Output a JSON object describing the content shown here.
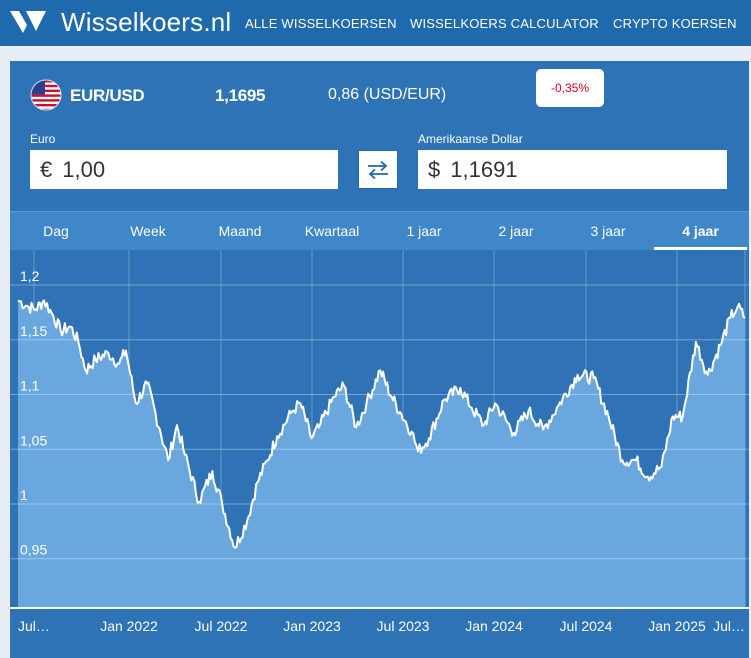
{
  "header": {
    "brand": "Wisselkoers.nl",
    "nav": [
      "ALLE WISSELKOERSEN",
      "WISSELKOERS CALCULATOR",
      "CRYPTO KOERSEN"
    ]
  },
  "ticker": {
    "pair": "EUR/USD",
    "rate": "1,1695",
    "inverse": "0,86 (USD/EUR)",
    "change": "-0,35%"
  },
  "converter": {
    "from_label": "Euro",
    "from_symbol": "€",
    "from_value": "1,00",
    "to_label": "Amerikaanse Dollar",
    "to_symbol": "$",
    "to_value": "1,1691"
  },
  "tabs": {
    "items": [
      "Dag",
      "Week",
      "Maand",
      "Kwartaal",
      "1 jaar",
      "2 jaar",
      "3 jaar",
      "4 jaar"
    ],
    "active": "4 jaar"
  },
  "colors": {
    "header": "#1f6aac",
    "card": "#2e73b6",
    "area_fill": "#6aa7df",
    "negative": "#d0021b"
  },
  "chart_data": {
    "type": "area",
    "x_tick_labels": [
      "Jul…",
      "Jan 2022",
      "Jul 2022",
      "Jan 2023",
      "Jul 2023",
      "Jan 2024",
      "Jul 2024",
      "Jan 2025",
      "Jul…"
    ],
    "y_tick_labels": [
      "1,2",
      "1,15",
      "1,1",
      "1,05",
      "1",
      "0,95"
    ],
    "y_ticks": [
      1.2,
      1.15,
      1.1,
      1.05,
      1.0,
      0.95
    ],
    "ylim": [
      0.905,
      1.232
    ],
    "x_range": [
      "2021-07-10",
      "2025-07-30"
    ],
    "grid": true,
    "series": [
      {
        "points": [
          [
            "2021-07-10",
            1.186
          ],
          [
            "2021-08-01",
            1.18
          ],
          [
            "2021-08-15",
            1.178
          ],
          [
            "2021-09-01",
            1.186
          ],
          [
            "2021-09-20",
            1.172
          ],
          [
            "2021-10-05",
            1.158
          ],
          [
            "2021-10-25",
            1.162
          ],
          [
            "2021-11-10",
            1.148
          ],
          [
            "2021-11-25",
            1.122
          ],
          [
            "2021-12-15",
            1.132
          ],
          [
            "2022-01-10",
            1.138
          ],
          [
            "2022-02-01",
            1.128
          ],
          [
            "2022-02-15",
            1.14
          ],
          [
            "2022-03-07",
            1.092
          ],
          [
            "2022-03-30",
            1.11
          ],
          [
            "2022-04-25",
            1.068
          ],
          [
            "2022-05-12",
            1.04
          ],
          [
            "2022-05-30",
            1.072
          ],
          [
            "2022-06-15",
            1.045
          ],
          [
            "2022-07-14",
            1.002
          ],
          [
            "2022-08-10",
            1.03
          ],
          [
            "2022-08-30",
            1.0
          ],
          [
            "2022-09-25",
            0.96
          ],
          [
            "2022-10-20",
            0.985
          ],
          [
            "2022-11-10",
            1.02
          ],
          [
            "2022-11-30",
            1.04
          ],
          [
            "2022-12-20",
            1.062
          ],
          [
            "2023-01-20",
            1.085
          ],
          [
            "2023-02-05",
            1.092
          ],
          [
            "2023-02-28",
            1.06
          ],
          [
            "2023-03-15",
            1.07
          ],
          [
            "2023-04-15",
            1.098
          ],
          [
            "2023-05-05",
            1.108
          ],
          [
            "2023-05-30",
            1.07
          ],
          [
            "2023-06-20",
            1.092
          ],
          [
            "2023-07-18",
            1.122
          ],
          [
            "2023-08-10",
            1.098
          ],
          [
            "2023-08-30",
            1.082
          ],
          [
            "2023-09-20",
            1.066
          ],
          [
            "2023-10-03",
            1.048
          ],
          [
            "2023-10-25",
            1.06
          ],
          [
            "2023-11-25",
            1.095
          ],
          [
            "2023-12-28",
            1.106
          ],
          [
            "2024-01-20",
            1.088
          ],
          [
            "2024-02-14",
            1.072
          ],
          [
            "2024-03-08",
            1.092
          ],
          [
            "2024-04-15",
            1.065
          ],
          [
            "2024-05-15",
            1.085
          ],
          [
            "2024-06-14",
            1.068
          ],
          [
            "2024-07-15",
            1.09
          ],
          [
            "2024-08-23",
            1.118
          ],
          [
            "2024-09-25",
            1.115
          ],
          [
            "2024-10-25",
            1.08
          ],
          [
            "2024-11-22",
            1.04
          ],
          [
            "2024-12-20",
            1.04
          ],
          [
            "2025-01-13",
            1.025
          ],
          [
            "2025-02-10",
            1.034
          ],
          [
            "2025-03-05",
            1.08
          ],
          [
            "2025-03-25",
            1.08
          ],
          [
            "2025-04-21",
            1.148
          ],
          [
            "2025-05-15",
            1.118
          ],
          [
            "2025-06-10",
            1.145
          ],
          [
            "2025-06-30",
            1.17
          ],
          [
            "2025-07-15",
            1.18
          ],
          [
            "2025-07-30",
            1.17
          ]
        ]
      }
    ]
  }
}
